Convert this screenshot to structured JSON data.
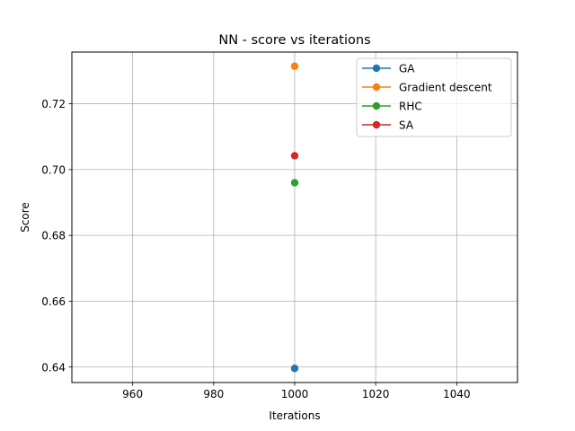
{
  "chart_data": {
    "type": "line",
    "title": "NN - score vs iterations",
    "xlabel": "Iterations",
    "ylabel": "Score",
    "xlim": [
      945,
      1055
    ],
    "ylim": [
      0.6353,
      0.7357
    ],
    "xticks": [
      960,
      980,
      1000,
      1020,
      1040
    ],
    "xtick_labels": [
      "960",
      "980",
      "1000",
      "1020",
      "1040"
    ],
    "yticks": [
      0.64,
      0.66,
      0.68,
      0.7,
      0.72
    ],
    "ytick_labels": [
      "0.64",
      "0.66",
      "0.68",
      "0.70",
      "0.72"
    ],
    "grid": true,
    "legend_position": "top-right",
    "series": [
      {
        "name": "GA",
        "color": "#1f77b4",
        "x": [
          1000
        ],
        "y": [
          0.6396
        ]
      },
      {
        "name": "Gradient descent",
        "color": "#ff7f0e",
        "x": [
          1000
        ],
        "y": [
          0.7314
        ]
      },
      {
        "name": "RHC",
        "color": "#2ca02c",
        "x": [
          1000
        ],
        "y": [
          0.696
        ]
      },
      {
        "name": "SA",
        "color": "#d62728",
        "x": [
          1000
        ],
        "y": [
          0.7042
        ]
      }
    ]
  }
}
